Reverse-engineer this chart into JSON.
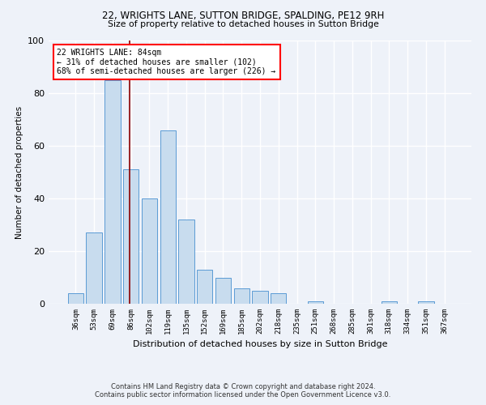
{
  "title1": "22, WRIGHTS LANE, SUTTON BRIDGE, SPALDING, PE12 9RH",
  "title2": "Size of property relative to detached houses in Sutton Bridge",
  "xlabel": "Distribution of detached houses by size in Sutton Bridge",
  "ylabel": "Number of detached properties",
  "footnote1": "Contains HM Land Registry data © Crown copyright and database right 2024.",
  "footnote2": "Contains public sector information licensed under the Open Government Licence v3.0.",
  "bar_labels": [
    "36sqm",
    "53sqm",
    "69sqm",
    "86sqm",
    "102sqm",
    "119sqm",
    "135sqm",
    "152sqm",
    "169sqm",
    "185sqm",
    "202sqm",
    "218sqm",
    "235sqm",
    "251sqm",
    "268sqm",
    "285sqm",
    "301sqm",
    "318sqm",
    "334sqm",
    "351sqm",
    "367sqm"
  ],
  "bar_values": [
    4,
    27,
    85,
    51,
    40,
    66,
    32,
    13,
    10,
    6,
    5,
    4,
    0,
    1,
    0,
    0,
    0,
    1,
    0,
    1,
    0
  ],
  "bar_color": "#c8dcee",
  "bar_edge_color": "#5b9bd5",
  "vline_x_index": 2.93,
  "property_line_label": "22 WRIGHTS LANE: 84sqm",
  "annotation_line1": "← 31% of detached houses are smaller (102)",
  "annotation_line2": "68% of semi-detached houses are larger (226) →",
  "annotation_box_color": "white",
  "annotation_box_edge": "red",
  "vline_color": "#8b0000",
  "ylim": [
    0,
    100
  ],
  "yticks": [
    0,
    20,
    40,
    60,
    80,
    100
  ],
  "background_color": "#eef2f9",
  "grid_color": "white"
}
